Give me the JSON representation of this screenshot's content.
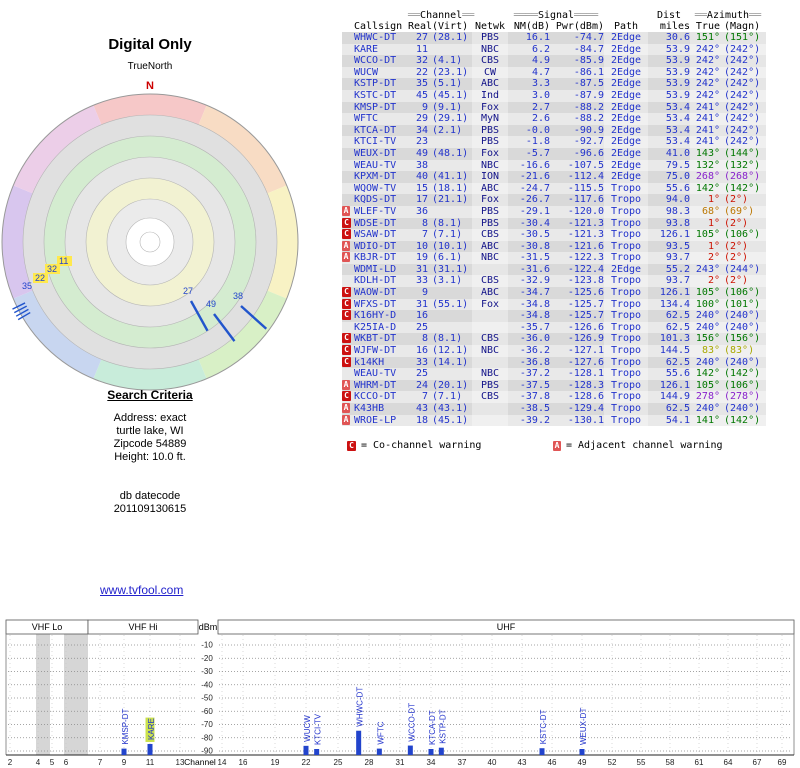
{
  "radar": {
    "title": "Digital Only",
    "north_label": "TrueNorth",
    "north_letter": "N",
    "sector_colors": [
      "#f6c8c8",
      "#f8dcc4",
      "#f8f2c4",
      "#d8f0c6",
      "#c8ecda",
      "#c8d6f0",
      "#d8c6ee",
      "#eccee8"
    ],
    "sw_markers": [
      {
        "label": "35",
        "highlight": false
      },
      {
        "label": "22",
        "highlight": true
      },
      {
        "label": "32",
        "highlight": true
      },
      {
        "label": "11",
        "highlight": true
      }
    ],
    "se_markers": [
      {
        "label": "27",
        "azimuth": 151
      },
      {
        "label": "49",
        "azimuth": 143
      },
      {
        "label": "38",
        "azimuth": 132
      }
    ]
  },
  "search_criteria": {
    "heading": "Search Criteria",
    "lines": [
      "Address: exact",
      "turtle lake, WI",
      "Zipcode 54889",
      "Height: 10.0 ft.",
      "",
      "",
      "db datecode",
      "201109130615"
    ]
  },
  "link": {
    "text": "www.tvfool.com"
  },
  "azimuth_colors": {
    "green": "#007700",
    "blue": "#2233cc",
    "purple": "#8822cc",
    "red": "#cc1100",
    "orange": "#bb7700",
    "olive": "#a8a800"
  },
  "table": {
    "header_top": {
      "channel": {
        "pre": "══",
        "label": "Channel",
        "post": "══"
      },
      "signal": {
        "pre": "════",
        "label": "Signal",
        "post": "════"
      },
      "dist": {
        "pre": "",
        "label": "Dist",
        "post": ""
      },
      "azimuth": {
        "pre": "══",
        "label": "Azimuth",
        "post": "══"
      }
    },
    "header": {
      "callsign": "Callsign",
      "real": "Real",
      "virt": "(Virt)",
      "netwk": "Netwk",
      "nm": "NM(dB)",
      "pwr": "Pwr(dBm)",
      "path": "Path",
      "miles": "miles",
      "true": "True",
      "magn": "(Magn)"
    },
    "rows": [
      {
        "cs": "WHWC-DT",
        "real": "27",
        "virt": "(28.1)",
        "net": "PBS",
        "nm": "16.1",
        "pwr": "-74.7",
        "path": "2Edge",
        "mi": "30.6",
        "taz": "151°",
        "maz": "(151°)",
        "col": "green",
        "warn": ""
      },
      {
        "cs": "KARE",
        "real": "11",
        "virt": "",
        "net": "NBC",
        "nm": "6.2",
        "pwr": "-84.7",
        "path": "2Edge",
        "mi": "53.9",
        "taz": "242°",
        "maz": "(242°)",
        "col": "blue",
        "warn": ""
      },
      {
        "cs": "WCCO-DT",
        "real": "32",
        "virt": "(4.1)",
        "net": "CBS",
        "nm": "4.9",
        "pwr": "-85.9",
        "path": "2Edge",
        "mi": "53.9",
        "taz": "242°",
        "maz": "(242°)",
        "col": "blue",
        "warn": ""
      },
      {
        "cs": "WUCW",
        "real": "22",
        "virt": "(23.1)",
        "net": "CW",
        "nm": "4.7",
        "pwr": "-86.1",
        "path": "2Edge",
        "mi": "53.9",
        "taz": "242°",
        "maz": "(242°)",
        "col": "blue",
        "warn": ""
      },
      {
        "cs": "KSTP-DT",
        "real": "35",
        "virt": "(5.1)",
        "net": "ABC",
        "nm": "3.3",
        "pwr": "-87.5",
        "path": "2Edge",
        "mi": "53.9",
        "taz": "242°",
        "maz": "(242°)",
        "col": "blue",
        "warn": ""
      },
      {
        "cs": "KSTC-DT",
        "real": "45",
        "virt": "(45.1)",
        "net": "Ind",
        "nm": "3.0",
        "pwr": "-87.9",
        "path": "2Edge",
        "mi": "53.9",
        "taz": "242°",
        "maz": "(242°)",
        "col": "blue",
        "warn": ""
      },
      {
        "cs": "KMSP-DT",
        "real": "9",
        "virt": "(9.1)",
        "net": "Fox",
        "nm": "2.7",
        "pwr": "-88.2",
        "path": "2Edge",
        "mi": "53.4",
        "taz": "241°",
        "maz": "(242°)",
        "col": "blue",
        "warn": ""
      },
      {
        "cs": "WFTC",
        "real": "29",
        "virt": "(29.1)",
        "net": "MyN",
        "nm": "2.6",
        "pwr": "-88.2",
        "path": "2Edge",
        "mi": "53.4",
        "taz": "241°",
        "maz": "(242°)",
        "col": "blue",
        "warn": ""
      },
      {
        "cs": "KTCA-DT",
        "real": "34",
        "virt": "(2.1)",
        "net": "PBS",
        "nm": "-0.0",
        "pwr": "-90.9",
        "path": "2Edge",
        "mi": "53.4",
        "taz": "241°",
        "maz": "(242°)",
        "col": "blue",
        "warn": ""
      },
      {
        "cs": "KTCI-TV",
        "real": "23",
        "virt": "",
        "net": "PBS",
        "nm": "-1.8",
        "pwr": "-92.7",
        "path": "2Edge",
        "mi": "53.4",
        "taz": "241°",
        "maz": "(242°)",
        "col": "blue",
        "warn": ""
      },
      {
        "cs": "WEUX-DT",
        "real": "49",
        "virt": "(48.1)",
        "net": "Fox",
        "nm": "-5.7",
        "pwr": "-96.6",
        "path": "2Edge",
        "mi": "41.0",
        "taz": "143°",
        "maz": "(144°)",
        "col": "green",
        "warn": ""
      },
      {
        "cs": "WEAU-TV",
        "real": "38",
        "virt": "",
        "net": "NBC",
        "nm": "-16.6",
        "pwr": "-107.5",
        "path": "2Edge",
        "mi": "79.5",
        "taz": "132°",
        "maz": "(132°)",
        "col": "green",
        "warn": ""
      },
      {
        "cs": "KPXM-DT",
        "real": "40",
        "virt": "(41.1)",
        "net": "ION",
        "nm": "-21.6",
        "pwr": "-112.4",
        "path": "2Edge",
        "mi": "75.0",
        "taz": "268°",
        "maz": "(268°)",
        "col": "purple",
        "warn": ""
      },
      {
        "cs": "WQOW-TV",
        "real": "15",
        "virt": "(18.1)",
        "net": "ABC",
        "nm": "-24.7",
        "pwr": "-115.5",
        "path": "Tropo",
        "mi": "55.6",
        "taz": "142°",
        "maz": "(142°)",
        "col": "green",
        "warn": ""
      },
      {
        "cs": "KQDS-DT",
        "real": "17",
        "virt": "(21.1)",
        "net": "Fox",
        "nm": "-26.7",
        "pwr": "-117.6",
        "path": "Tropo",
        "mi": "94.0",
        "taz": "1°",
        "maz": "(2°)",
        "col": "red",
        "warn": ""
      },
      {
        "cs": "WLEF-TV",
        "real": "36",
        "virt": "",
        "net": "PBS",
        "nm": "-29.1",
        "pwr": "-120.0",
        "path": "Tropo",
        "mi": "98.3",
        "taz": "68°",
        "maz": "(69°)",
        "col": "orange",
        "warn": "A"
      },
      {
        "cs": "WDSE-DT",
        "real": "8",
        "virt": "(8.1)",
        "net": "PBS",
        "nm": "-30.4",
        "pwr": "-121.3",
        "path": "Tropo",
        "mi": "93.8",
        "taz": "1°",
        "maz": "(2°)",
        "col": "red",
        "warn": "C"
      },
      {
        "cs": "WSAW-DT",
        "real": "7",
        "virt": "(7.1)",
        "net": "CBS",
        "nm": "-30.5",
        "pwr": "-121.3",
        "path": "Tropo",
        "mi": "126.1",
        "taz": "105°",
        "maz": "(106°)",
        "col": "green",
        "warn": "C"
      },
      {
        "cs": "WDIO-DT",
        "real": "10",
        "virt": "(10.1)",
        "net": "ABC",
        "nm": "-30.8",
        "pwr": "-121.6",
        "path": "Tropo",
        "mi": "93.5",
        "taz": "1°",
        "maz": "(2°)",
        "col": "red",
        "warn": "A"
      },
      {
        "cs": "KBJR-DT",
        "real": "19",
        "virt": "(6.1)",
        "net": "NBC",
        "nm": "-31.5",
        "pwr": "-122.3",
        "path": "Tropo",
        "mi": "93.7",
        "taz": "2°",
        "maz": "(2°)",
        "col": "red",
        "warn": "A"
      },
      {
        "cs": "WDMI-LD",
        "real": "31",
        "virt": "(31.1)",
        "net": "",
        "nm": "-31.6",
        "pwr": "-122.4",
        "path": "2Edge",
        "mi": "55.2",
        "taz": "243°",
        "maz": "(244°)",
        "col": "blue",
        "warn": ""
      },
      {
        "cs": "KDLH-DT",
        "real": "33",
        "virt": "(3.1)",
        "net": "CBS",
        "nm": "-32.9",
        "pwr": "-123.8",
        "path": "Tropo",
        "mi": "93.7",
        "taz": "2°",
        "maz": "(2°)",
        "col": "red",
        "warn": ""
      },
      {
        "cs": "WAOW-DT",
        "real": "9",
        "virt": "",
        "net": "ABC",
        "nm": "-34.7",
        "pwr": "-125.6",
        "path": "Tropo",
        "mi": "126.1",
        "taz": "105°",
        "maz": "(106°)",
        "col": "green",
        "warn": "C"
      },
      {
        "cs": "WFXS-DT",
        "real": "31",
        "virt": "(55.1)",
        "net": "Fox",
        "nm": "-34.8",
        "pwr": "-125.7",
        "path": "Tropo",
        "mi": "134.4",
        "taz": "100°",
        "maz": "(101°)",
        "col": "green",
        "warn": "C"
      },
      {
        "cs": "K16HY-D",
        "real": "16",
        "virt": "",
        "net": "",
        "nm": "-34.8",
        "pwr": "-125.7",
        "path": "Tropo",
        "mi": "62.5",
        "taz": "240°",
        "maz": "(240°)",
        "col": "blue",
        "warn": "C"
      },
      {
        "cs": "K25IA-D",
        "real": "25",
        "virt": "",
        "net": "",
        "nm": "-35.7",
        "pwr": "-126.6",
        "path": "Tropo",
        "mi": "62.5",
        "taz": "240°",
        "maz": "(240°)",
        "col": "blue",
        "warn": ""
      },
      {
        "cs": "WKBT-DT",
        "real": "8",
        "virt": "(8.1)",
        "net": "CBS",
        "nm": "-36.0",
        "pwr": "-126.9",
        "path": "Tropo",
        "mi": "101.3",
        "taz": "156°",
        "maz": "(156°)",
        "col": "green",
        "warn": "C"
      },
      {
        "cs": "WJFW-DT",
        "real": "16",
        "virt": "(12.1)",
        "net": "NBC",
        "nm": "-36.2",
        "pwr": "-127.1",
        "path": "Tropo",
        "mi": "144.5",
        "taz": "83°",
        "maz": "(83°)",
        "col": "olive",
        "warn": "C"
      },
      {
        "cs": "k14KH",
        "real": "33",
        "virt": "(14.1)",
        "net": "",
        "nm": "-36.8",
        "pwr": "-127.6",
        "path": "Tropo",
        "mi": "62.5",
        "taz": "240°",
        "maz": "(240°)",
        "col": "blue",
        "warn": "C"
      },
      {
        "cs": "WEAU-TV",
        "real": "25",
        "virt": "",
        "net": "NBC",
        "nm": "-37.2",
        "pwr": "-128.1",
        "path": "Tropo",
        "mi": "55.6",
        "taz": "142°",
        "maz": "(142°)",
        "col": "green",
        "warn": ""
      },
      {
        "cs": "WHRM-DT",
        "real": "24",
        "virt": "(20.1)",
        "net": "PBS",
        "nm": "-37.5",
        "pwr": "-128.3",
        "path": "Tropo",
        "mi": "126.1",
        "taz": "105°",
        "maz": "(106°)",
        "col": "green",
        "warn": "A"
      },
      {
        "cs": "KCCO-DT",
        "real": "7",
        "virt": "(7.1)",
        "net": "CBS",
        "nm": "-37.8",
        "pwr": "-128.6",
        "path": "Tropo",
        "mi": "144.9",
        "taz": "278°",
        "maz": "(278°)",
        "col": "purple",
        "warn": "C"
      },
      {
        "cs": "K43HB",
        "real": "43",
        "virt": "(43.1)",
        "net": "",
        "nm": "-38.5",
        "pwr": "-129.4",
        "path": "Tropo",
        "mi": "62.5",
        "taz": "240°",
        "maz": "(240°)",
        "col": "blue",
        "warn": "A"
      },
      {
        "cs": "WROE-LP",
        "real": "18",
        "virt": "(45.1)",
        "net": "",
        "nm": "-39.2",
        "pwr": "-130.1",
        "path": "Tropo",
        "mi": "54.1",
        "taz": "141°",
        "maz": "(142°)",
        "col": "green",
        "warn": "A"
      }
    ]
  },
  "legend": {
    "co_icon": "C",
    "co_text": "= Co-channel warning",
    "adj_icon": "A",
    "adj_text": "= Adjacent channel warning"
  },
  "spectrum": {
    "bands": {
      "vhf_lo": "VHF Lo",
      "vhf_hi": "VHF Hi",
      "uhf": "UHF"
    },
    "dbm_label": "dBm",
    "channel_label": "Channel",
    "y_ticks": [
      "-10",
      "-20",
      "-30",
      "-40",
      "-50",
      "-60",
      "-70",
      "-80",
      "-90"
    ],
    "x_ticks": [
      2,
      4,
      5,
      6,
      7,
      9,
      11,
      13,
      14,
      16,
      19,
      22,
      25,
      28,
      31,
      34,
      37,
      40,
      43,
      46,
      49,
      52,
      55,
      58,
      61,
      64,
      67,
      69
    ],
    "stations": [
      {
        "label": "KMSP-DT",
        "channel": 9,
        "dbm": -88.2,
        "highlight": false
      },
      {
        "label": "KARE",
        "channel": 11,
        "dbm": -84.7,
        "highlight": true
      },
      {
        "label": "WUCW",
        "channel": 22,
        "dbm": -86.1,
        "highlight": false
      },
      {
        "label": "KTCI-TV",
        "channel": 23,
        "dbm": -92.7,
        "highlight": false
      },
      {
        "label": "WHWC-DT",
        "channel": 27,
        "dbm": -74.7,
        "highlight": false
      },
      {
        "label": "WFTC",
        "channel": 29,
        "dbm": -88.2,
        "highlight": false
      },
      {
        "label": "WCCO-DT",
        "channel": 32,
        "dbm": -85.9,
        "highlight": false
      },
      {
        "label": "KTCA-DT",
        "channel": 34,
        "dbm": -90.9,
        "highlight": false
      },
      {
        "label": "KSTP-DT",
        "channel": 35,
        "dbm": -87.5,
        "highlight": false
      },
      {
        "label": "KSTC-DT",
        "channel": 45,
        "dbm": -87.9,
        "highlight": false
      },
      {
        "label": "WEUX-DT",
        "channel": 49,
        "dbm": -96.6,
        "highlight": false
      }
    ]
  }
}
